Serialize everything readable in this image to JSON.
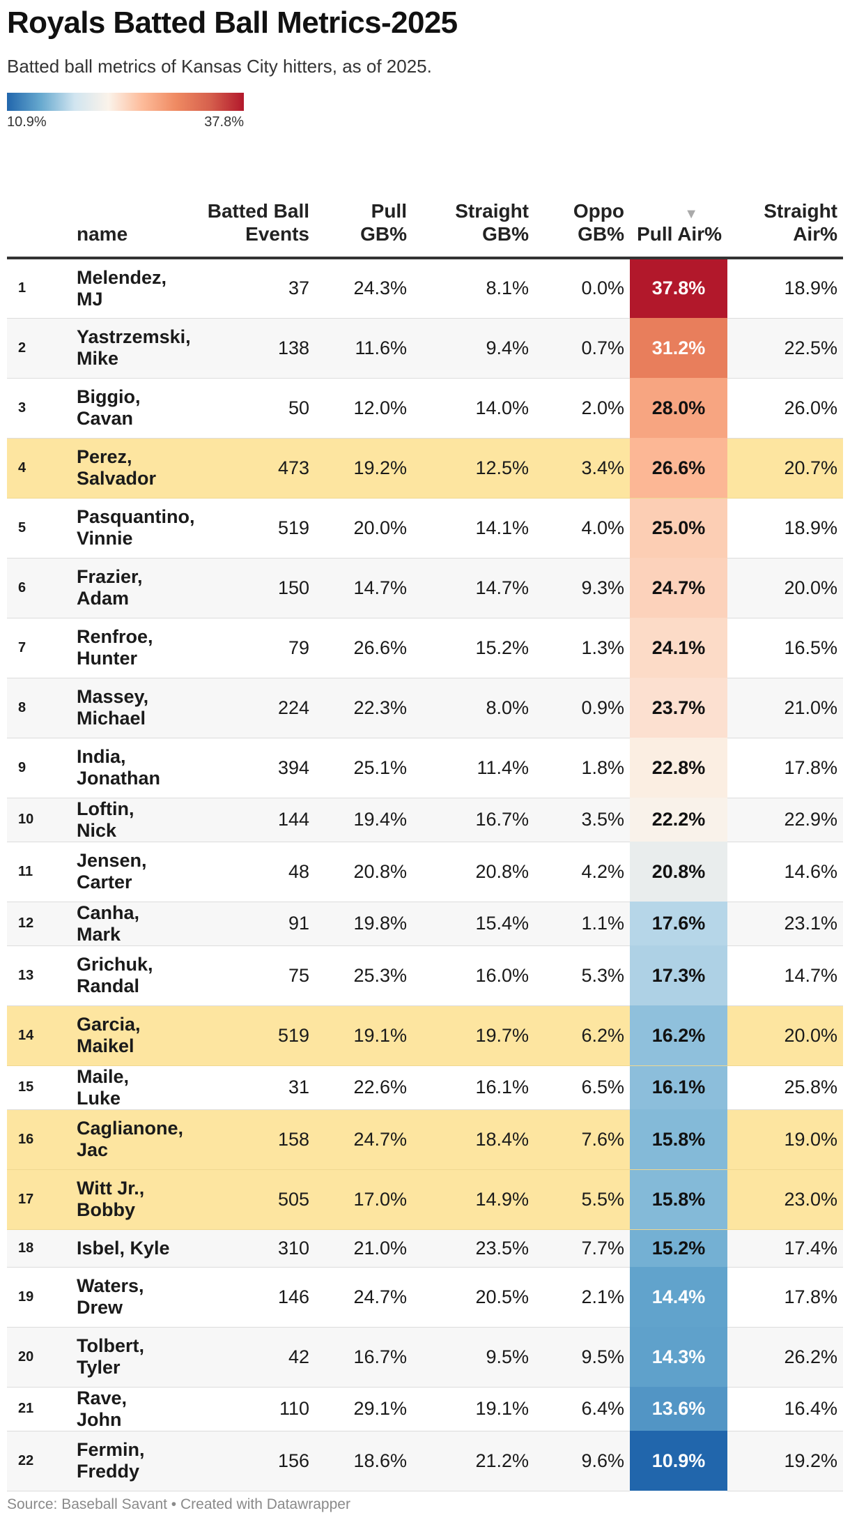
{
  "title": "Royals Batted Ball Metrics-2025",
  "subtitle": "Batted ball metrics of Kansas City hitters, as of 2025.",
  "legend": {
    "min_label": "10.9%",
    "max_label": "37.8%",
    "colors": [
      "#2166ac",
      "#67a9cf",
      "#d1e5f0",
      "#fbf3ea",
      "#fdbb9a",
      "#ef8a62",
      "#d6604d",
      "#b2182b"
    ]
  },
  "columns": {
    "name": "name",
    "bbe": "Batted Ball Events",
    "pull_gb": "Pull GB%",
    "straight_gb": "Straight GB%",
    "oppo_gb": "Oppo GB%",
    "pull_air": "Pull Air%",
    "straight_air": "Straight Air%"
  },
  "sort_indicator": "▼",
  "footer": "Source: Baseball Savant • Created with Datawrapper",
  "colors": {
    "highlight_row": "#fde5a0",
    "alt_row": "#f7f7f7"
  },
  "chart_data": {
    "type": "table",
    "title": "Royals Batted Ball Metrics-2025",
    "sort_column": "pull_air",
    "color_scale": {
      "column": "pull_air",
      "min": 10.9,
      "max": 37.8
    },
    "rows": [
      {
        "rank": "1",
        "name": [
          "Melendez,",
          "MJ"
        ],
        "bbe": "37",
        "pull_gb": "24.3%",
        "straight_gb": "8.1%",
        "oppo_gb": "0.0%",
        "pull_air": "37.8%",
        "straight_air": "18.9%",
        "pull_air_value": 37.8,
        "highlight": false
      },
      {
        "rank": "2",
        "name": [
          "Yastrzemski,",
          "Mike"
        ],
        "bbe": "138",
        "pull_gb": "11.6%",
        "straight_gb": "9.4%",
        "oppo_gb": "0.7%",
        "pull_air": "31.2%",
        "straight_air": "22.5%",
        "pull_air_value": 31.2,
        "highlight": false
      },
      {
        "rank": "3",
        "name": [
          "Biggio,",
          "Cavan"
        ],
        "bbe": "50",
        "pull_gb": "12.0%",
        "straight_gb": "14.0%",
        "oppo_gb": "2.0%",
        "pull_air": "28.0%",
        "straight_air": "26.0%",
        "pull_air_value": 28.0,
        "highlight": false
      },
      {
        "rank": "4",
        "name": [
          "Perez,",
          "Salvador"
        ],
        "bbe": "473",
        "pull_gb": "19.2%",
        "straight_gb": "12.5%",
        "oppo_gb": "3.4%",
        "pull_air": "26.6%",
        "straight_air": "20.7%",
        "pull_air_value": 26.6,
        "highlight": true
      },
      {
        "rank": "5",
        "name": [
          "Pasquantino,",
          "Vinnie"
        ],
        "bbe": "519",
        "pull_gb": "20.0%",
        "straight_gb": "14.1%",
        "oppo_gb": "4.0%",
        "pull_air": "25.0%",
        "straight_air": "18.9%",
        "pull_air_value": 25.0,
        "highlight": false
      },
      {
        "rank": "6",
        "name": [
          "Frazier,",
          "Adam"
        ],
        "bbe": "150",
        "pull_gb": "14.7%",
        "straight_gb": "14.7%",
        "oppo_gb": "9.3%",
        "pull_air": "24.7%",
        "straight_air": "20.0%",
        "pull_air_value": 24.7,
        "highlight": false
      },
      {
        "rank": "7",
        "name": [
          "Renfroe,",
          "Hunter"
        ],
        "bbe": "79",
        "pull_gb": "26.6%",
        "straight_gb": "15.2%",
        "oppo_gb": "1.3%",
        "pull_air": "24.1%",
        "straight_air": "16.5%",
        "pull_air_value": 24.1,
        "highlight": false
      },
      {
        "rank": "8",
        "name": [
          "Massey,",
          "Michael"
        ],
        "bbe": "224",
        "pull_gb": "22.3%",
        "straight_gb": "8.0%",
        "oppo_gb": "0.9%",
        "pull_air": "23.7%",
        "straight_air": "21.0%",
        "pull_air_value": 23.7,
        "highlight": false
      },
      {
        "rank": "9",
        "name": [
          "India,",
          "Jonathan"
        ],
        "bbe": "394",
        "pull_gb": "25.1%",
        "straight_gb": "11.4%",
        "oppo_gb": "1.8%",
        "pull_air": "22.8%",
        "straight_air": "17.8%",
        "pull_air_value": 22.8,
        "highlight": false
      },
      {
        "rank": "10",
        "name": [
          "Loftin, Nick"
        ],
        "bbe": "144",
        "pull_gb": "19.4%",
        "straight_gb": "16.7%",
        "oppo_gb": "3.5%",
        "pull_air": "22.2%",
        "straight_air": "22.9%",
        "pull_air_value": 22.2,
        "highlight": false
      },
      {
        "rank": "11",
        "name": [
          "Jensen,",
          "Carter"
        ],
        "bbe": "48",
        "pull_gb": "20.8%",
        "straight_gb": "20.8%",
        "oppo_gb": "4.2%",
        "pull_air": "20.8%",
        "straight_air": "14.6%",
        "pull_air_value": 20.8,
        "highlight": false
      },
      {
        "rank": "12",
        "name": [
          "Canha, Mark"
        ],
        "bbe": "91",
        "pull_gb": "19.8%",
        "straight_gb": "15.4%",
        "oppo_gb": "1.1%",
        "pull_air": "17.6%",
        "straight_air": "23.1%",
        "pull_air_value": 17.6,
        "highlight": false
      },
      {
        "rank": "13",
        "name": [
          "Grichuk,",
          "Randal"
        ],
        "bbe": "75",
        "pull_gb": "25.3%",
        "straight_gb": "16.0%",
        "oppo_gb": "5.3%",
        "pull_air": "17.3%",
        "straight_air": "14.7%",
        "pull_air_value": 17.3,
        "highlight": false
      },
      {
        "rank": "14",
        "name": [
          "Garcia,",
          "Maikel"
        ],
        "bbe": "519",
        "pull_gb": "19.1%",
        "straight_gb": "19.7%",
        "oppo_gb": "6.2%",
        "pull_air": "16.2%",
        "straight_air": "20.0%",
        "pull_air_value": 16.2,
        "highlight": true
      },
      {
        "rank": "15",
        "name": [
          "Maile, Luke"
        ],
        "bbe": "31",
        "pull_gb": "22.6%",
        "straight_gb": "16.1%",
        "oppo_gb": "6.5%",
        "pull_air": "16.1%",
        "straight_air": "25.8%",
        "pull_air_value": 16.1,
        "highlight": false
      },
      {
        "rank": "16",
        "name": [
          "Caglianone,",
          "Jac"
        ],
        "bbe": "158",
        "pull_gb": "24.7%",
        "straight_gb": "18.4%",
        "oppo_gb": "7.6%",
        "pull_air": "15.8%",
        "straight_air": "19.0%",
        "pull_air_value": 15.8,
        "highlight": true
      },
      {
        "rank": "17",
        "name": [
          "Witt Jr.,",
          "Bobby"
        ],
        "bbe": "505",
        "pull_gb": "17.0%",
        "straight_gb": "14.9%",
        "oppo_gb": "5.5%",
        "pull_air": "15.8%",
        "straight_air": "23.0%",
        "pull_air_value": 15.8,
        "highlight": true
      },
      {
        "rank": "18",
        "name": [
          "Isbel, Kyle"
        ],
        "bbe": "310",
        "pull_gb": "21.0%",
        "straight_gb": "23.5%",
        "oppo_gb": "7.7%",
        "pull_air": "15.2%",
        "straight_air": "17.4%",
        "pull_air_value": 15.2,
        "highlight": false
      },
      {
        "rank": "19",
        "name": [
          "Waters,",
          "Drew"
        ],
        "bbe": "146",
        "pull_gb": "24.7%",
        "straight_gb": "20.5%",
        "oppo_gb": "2.1%",
        "pull_air": "14.4%",
        "straight_air": "17.8%",
        "pull_air_value": 14.4,
        "highlight": false
      },
      {
        "rank": "20",
        "name": [
          "Tolbert,",
          "Tyler"
        ],
        "bbe": "42",
        "pull_gb": "16.7%",
        "straight_gb": "9.5%",
        "oppo_gb": "9.5%",
        "pull_air": "14.3%",
        "straight_air": "26.2%",
        "pull_air_value": 14.3,
        "highlight": false
      },
      {
        "rank": "21",
        "name": [
          "Rave, John"
        ],
        "bbe": "110",
        "pull_gb": "29.1%",
        "straight_gb": "19.1%",
        "oppo_gb": "6.4%",
        "pull_air": "13.6%",
        "straight_air": "16.4%",
        "pull_air_value": 13.6,
        "highlight": false
      },
      {
        "rank": "22",
        "name": [
          "Fermin,",
          "Freddy"
        ],
        "bbe": "156",
        "pull_gb": "18.6%",
        "straight_gb": "21.2%",
        "oppo_gb": "9.6%",
        "pull_air": "10.9%",
        "straight_air": "19.2%",
        "pull_air_value": 10.9,
        "highlight": false
      }
    ]
  }
}
